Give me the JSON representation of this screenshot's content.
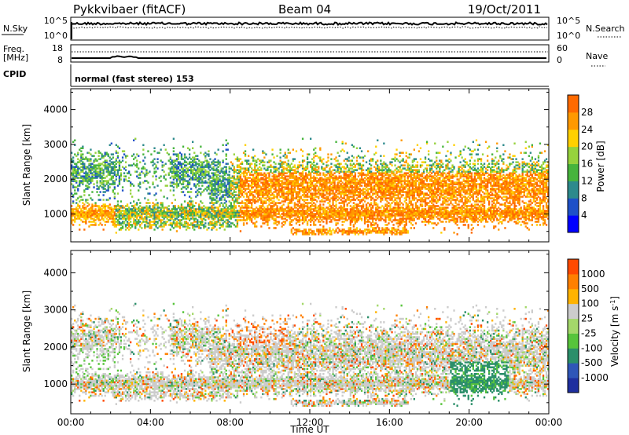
{
  "header": {
    "station": "Pykkvibaer (fitACF)",
    "beam": "Beam 04",
    "date": "19/Oct/2011"
  },
  "strips": {
    "nsky": {
      "label": "N.Sky",
      "tick_top": "10^5",
      "tick_bottom": "10^0",
      "right_tick_top": "10^5",
      "right_tick_bottom": "10^0",
      "right_label": "N.Search"
    },
    "freq": {
      "label_line1": "Freq.",
      "label_line2": "[MHz]",
      "tick_top": "18",
      "tick_bottom": "8",
      "right_tick_top": "60",
      "right_tick_bottom": "0",
      "right_label": "Nave"
    },
    "cpid": {
      "label": "CPID",
      "text": "normal (fast stereo) 153"
    }
  },
  "colors": {
    "power_scale": [
      "#0000ff",
      "#1e50c8",
      "#2d8a8c",
      "#46b43c",
      "#96d23c",
      "#ffd000",
      "#ff9900",
      "#ff6a00",
      "#ff2a00",
      "#e60000"
    ],
    "velocity_scale": [
      "#1f2f9f",
      "#2f56b8",
      "#2b8f6a",
      "#57c43b",
      "#a4d86a",
      "#cccccc",
      "#ffb300",
      "#ff8000",
      "#ff4a00",
      "#e60000"
    ]
  },
  "chart_data": [
    {
      "type": "heatmap",
      "panel": "power",
      "ylabel": "Slant Range [km]",
      "xlim": [
        "00:00",
        "24:00"
      ],
      "ylim": [
        200,
        4600
      ],
      "yticks": [
        "1000",
        "2000",
        "3000",
        "4000"
      ],
      "colorbar": {
        "label": "Power [dB]",
        "range": [
          0,
          32
        ],
        "ticks": [
          "4",
          "8",
          "12",
          "16",
          "20",
          "24",
          "28"
        ]
      },
      "grid": false
    },
    {
      "type": "heatmap",
      "panel": "velocity",
      "ylabel": "Slant Range [km]",
      "xlabel": "Time UT",
      "xticks": [
        "00:00",
        "04:00",
        "08:00",
        "12:00",
        "16:00",
        "20:00",
        "00:00"
      ],
      "xlim": [
        "00:00",
        "24:00"
      ],
      "ylim": [
        200,
        4600
      ],
      "yticks": [
        "1000",
        "2000",
        "3000",
        "4000"
      ],
      "colorbar": {
        "label_main": "Velocity [m s",
        "label_sup": "-1",
        "label_end": "]",
        "ticks": [
          "1000",
          "500",
          "100",
          "25",
          "-25",
          "-100",
          "-500",
          "-1000"
        ]
      },
      "grid": false
    }
  ]
}
